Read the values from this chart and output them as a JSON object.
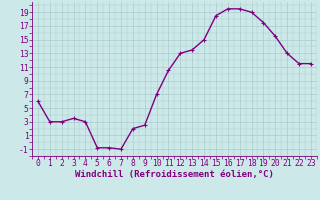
{
  "x": [
    0,
    1,
    2,
    3,
    4,
    5,
    6,
    7,
    8,
    9,
    10,
    11,
    12,
    13,
    14,
    15,
    16,
    17,
    18,
    19,
    20,
    21,
    22,
    23
  ],
  "y": [
    6,
    3,
    3,
    3.5,
    3,
    -0.8,
    -0.8,
    -1,
    2,
    2.5,
    7,
    10.5,
    13,
    13.5,
    15,
    18.5,
    19.5,
    19.5,
    19,
    17.5,
    15.5,
    13,
    11.5,
    11.5
  ],
  "line_color": "#800080",
  "bg_color": "#cde8e8",
  "grid_color": "#a8cccc",
  "xlabel": "Windchill (Refroidissement éolien,°C)",
  "yticks": [
    -1,
    1,
    3,
    5,
    7,
    9,
    11,
    13,
    15,
    17,
    19
  ],
  "xticks": [
    0,
    1,
    2,
    3,
    4,
    5,
    6,
    7,
    8,
    9,
    10,
    11,
    12,
    13,
    14,
    15,
    16,
    17,
    18,
    19,
    20,
    21,
    22,
    23
  ],
  "ylim": [
    -2.0,
    20.5
  ],
  "xlim": [
    -0.5,
    23.5
  ],
  "markersize": 2.5,
  "linewidth": 1.0,
  "xlabel_fontsize": 6.5,
  "tick_fontsize": 5.8
}
